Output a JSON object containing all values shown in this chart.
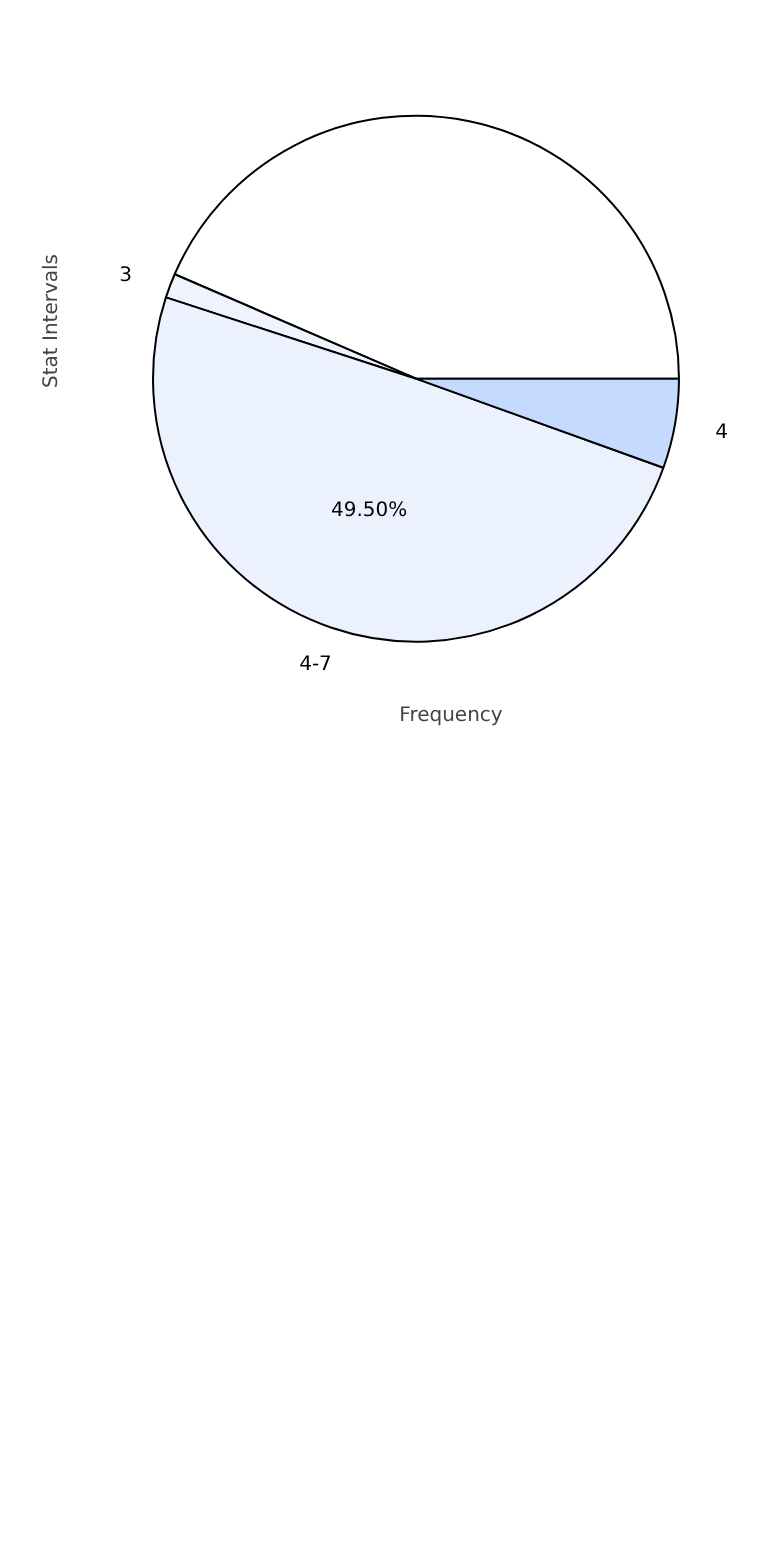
{
  "chart_data": {
    "type": "pie",
    "xlabel": "Frequency",
    "ylabel": "Stat Intervals",
    "categories": [
      null,
      "3",
      "4-7",
      "4"
    ],
    "values": [
      43.5,
      1.5,
      49.5,
      5.5
    ],
    "colors": [
      "#ffffff",
      "#eef3fd",
      "#ecf2fd",
      "#c5daff"
    ],
    "value_labels": [
      null,
      null,
      "49.50%",
      null
    ]
  }
}
